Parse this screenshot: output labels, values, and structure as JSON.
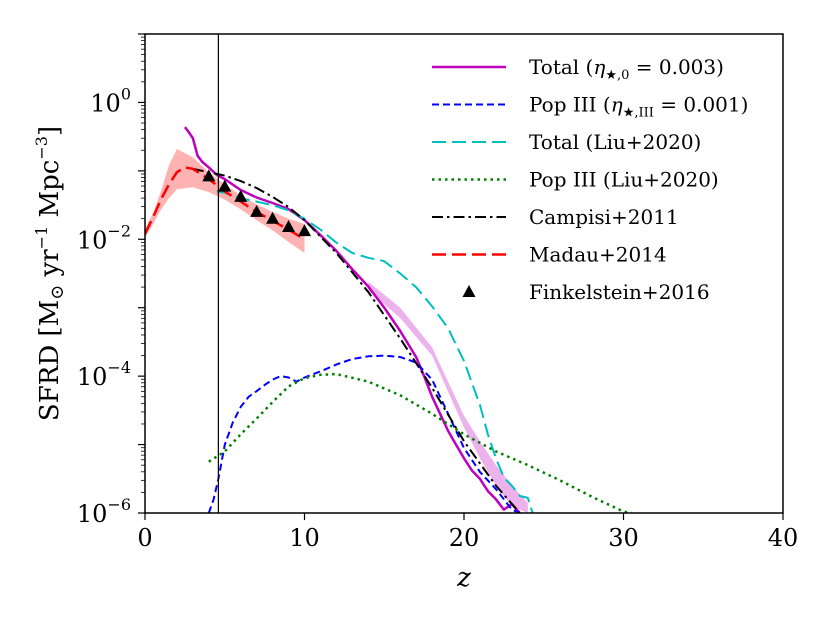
{
  "chart_data": {
    "type": "line",
    "xlabel": "z",
    "ylabel": "SFRD [M⊙ yr⁻¹ Mpc⁻³]",
    "ylabel_parts": {
      "main": "SFRD [M",
      "sun": "⊙",
      "yr": " yr",
      "yr_exp": "−1",
      "mpc": " Mpc",
      "mpc_exp": "−3",
      "close": "]"
    },
    "xlim": [
      0,
      40
    ],
    "ylim_log10": [
      -6,
      1
    ],
    "yscale": "log",
    "x_ticks": [
      0,
      10,
      20,
      30,
      40
    ],
    "x_tick_labels": [
      "0",
      "10",
      "20",
      "30",
      "40"
    ],
    "y_ticks_log10": [
      -6,
      -4,
      -2,
      0
    ],
    "y_tick_base": "10",
    "y_tick_exponents": [
      "−6",
      "−4",
      "−2",
      "0"
    ],
    "vertical_line_x": 4.6,
    "legend": {
      "placement": "top-right",
      "entries": [
        {
          "id": "total",
          "main": "Total (",
          "math": "η",
          "sub": "★,0",
          "rest": " = 0.003)"
        },
        {
          "id": "pop3",
          "main": "Pop III (",
          "math": "η",
          "sub": "★,III",
          "rest": " = 0.001)"
        },
        {
          "id": "total_liu",
          "main": "Total (Liu+2020)"
        },
        {
          "id": "pop3_liu",
          "main": "Pop III (Liu+2020)"
        },
        {
          "id": "campisi",
          "main": "Campisi+2011"
        },
        {
          "id": "madau",
          "main": "Madau+2014"
        },
        {
          "id": "finkelstein",
          "main": "Finkelstein+2016"
        }
      ]
    },
    "series": [
      {
        "id": "total",
        "name": "Total (η★,0 = 0.003)",
        "color": "#bf00bf",
        "style": "solid",
        "width": 2.5,
        "band": {
          "color": "#bf00bf",
          "opacity": 0.3,
          "x": [
            14,
            16,
            18,
            20,
            21,
            22,
            23,
            24
          ],
          "lo": [
            -2.75,
            -3.15,
            -3.7,
            -4.75,
            -5.2,
            -5.6,
            -5.9,
            -6.0
          ],
          "hi": [
            -2.62,
            -3.0,
            -3.58,
            -4.58,
            -4.95,
            -5.3,
            -5.6,
            -5.85
          ]
        },
        "x": [
          2.5,
          2.7,
          3.0,
          3.3,
          3.6,
          4.0,
          4.5,
          5,
          6,
          7,
          8,
          9,
          10,
          11,
          12,
          13,
          14,
          15,
          16,
          17,
          17.5,
          18,
          18.5,
          19,
          19.5,
          20,
          20.5,
          21,
          21.5,
          22,
          22.5,
          23,
          23.5
        ],
        "y": [
          -0.36,
          -0.42,
          -0.52,
          -0.78,
          -0.87,
          -0.95,
          -1.06,
          -1.12,
          -1.28,
          -1.39,
          -1.47,
          -1.56,
          -1.72,
          -1.94,
          -2.17,
          -2.44,
          -2.69,
          -3.0,
          -3.34,
          -3.72,
          -4.0,
          -4.3,
          -4.55,
          -4.8,
          -5.0,
          -5.2,
          -5.38,
          -5.5,
          -5.68,
          -5.8,
          -5.95,
          -5.87,
          -6.0
        ]
      },
      {
        "id": "pop3",
        "name": "Pop III (η★,III = 0.001)",
        "color": "#0000ff",
        "style": "dashed",
        "width": 2,
        "x": [
          4.0,
          4.3,
          4.6,
          5.0,
          5.5,
          6.0,
          6.5,
          7.0,
          7.5,
          8.0,
          8.5,
          9.0,
          9.5,
          10,
          11,
          12,
          13,
          14,
          15,
          16,
          17,
          18,
          19,
          20,
          21,
          22,
          22.5,
          23,
          23.5
        ],
        "y": [
          -6.0,
          -5.8,
          -5.5,
          -5.0,
          -4.68,
          -4.45,
          -4.3,
          -4.22,
          -4.13,
          -4.05,
          -4.0,
          -4.02,
          -4.08,
          -4.02,
          -3.93,
          -3.83,
          -3.75,
          -3.71,
          -3.7,
          -3.72,
          -3.8,
          -4.05,
          -4.55,
          -5.05,
          -5.4,
          -5.65,
          -5.8,
          -5.95,
          -6.0
        ]
      },
      {
        "id": "total_liu",
        "name": "Total (Liu+2020)",
        "color": "#00bfbf",
        "style": "longdash",
        "width": 2,
        "x": [
          4.5,
          5,
          6,
          7,
          8,
          9,
          10,
          11,
          12,
          13,
          14,
          15,
          16,
          17,
          18,
          19,
          20,
          21,
          21.5,
          22,
          22.5,
          23,
          23.5,
          24,
          24.3
        ],
        "y": [
          -1.3,
          -1.32,
          -1.4,
          -1.45,
          -1.5,
          -1.58,
          -1.7,
          -1.86,
          -2.05,
          -2.2,
          -2.27,
          -2.32,
          -2.5,
          -2.7,
          -2.98,
          -3.3,
          -3.78,
          -4.42,
          -4.85,
          -5.2,
          -5.48,
          -5.6,
          -5.75,
          -5.78,
          -6.0
        ]
      },
      {
        "id": "pop3_liu",
        "name": "Pop III (Liu+2020)",
        "color": "#008000",
        "style": "dotted",
        "width": 2.5,
        "x": [
          4,
          5,
          6,
          7,
          8,
          9,
          10,
          11,
          12,
          14,
          16,
          18,
          20,
          22,
          24,
          26,
          28,
          30,
          30.5
        ],
        "y": [
          -5.25,
          -5.1,
          -4.85,
          -4.62,
          -4.38,
          -4.15,
          -4.03,
          -3.98,
          -3.97,
          -4.08,
          -4.28,
          -4.55,
          -4.85,
          -5.1,
          -5.3,
          -5.52,
          -5.76,
          -5.98,
          -6.0
        ]
      },
      {
        "id": "campisi",
        "name": "Campisi+2011",
        "color": "#000000",
        "style": "dashdot",
        "width": 2,
        "x": [
          3,
          4,
          5,
          6,
          7,
          8,
          9,
          10,
          12,
          14,
          16,
          18,
          20,
          22,
          23.5
        ],
        "y": [
          -0.97,
          -1.02,
          -1.07,
          -1.15,
          -1.25,
          -1.38,
          -1.53,
          -1.72,
          -2.2,
          -2.77,
          -3.45,
          -4.17,
          -4.95,
          -5.6,
          -6.0
        ]
      },
      {
        "id": "madau",
        "name": "Madau+2014",
        "color": "#ff0000",
        "style": "longdash",
        "width": 2.5,
        "band": {
          "color": "#ff0000",
          "opacity": 0.3,
          "x": [
            0,
            0.5,
            1,
            1.5,
            2,
            3,
            4,
            5,
            6,
            7,
            8,
            9,
            10
          ],
          "lo": [
            -1.98,
            -1.78,
            -1.57,
            -1.4,
            -1.27,
            -1.24,
            -1.31,
            -1.42,
            -1.56,
            -1.72,
            -1.87,
            -2.04,
            -2.2
          ],
          "hi": [
            -1.85,
            -1.62,
            -1.3,
            -0.92,
            -0.68,
            -0.8,
            -1.02,
            -1.2,
            -1.36,
            -1.49,
            -1.6,
            -1.7,
            -1.78
          ]
        },
        "x": [
          0,
          0.5,
          1,
          1.5,
          2,
          2.5,
          3,
          4,
          5,
          6,
          7,
          8,
          9,
          10
        ],
        "y": [
          -1.92,
          -1.68,
          -1.42,
          -1.2,
          -1.02,
          -0.95,
          -0.97,
          -1.12,
          -1.3,
          -1.45,
          -1.6,
          -1.73,
          -1.86,
          -2.0
        ]
      },
      {
        "id": "finkelstein",
        "name": "Finkelstein+2016",
        "color": "#000000",
        "style": "triangle",
        "x": [
          4,
          5,
          6,
          7,
          8,
          9,
          10
        ],
        "y": [
          -1.08,
          -1.23,
          -1.38,
          -1.6,
          -1.7,
          -1.82,
          -1.88
        ]
      }
    ]
  }
}
